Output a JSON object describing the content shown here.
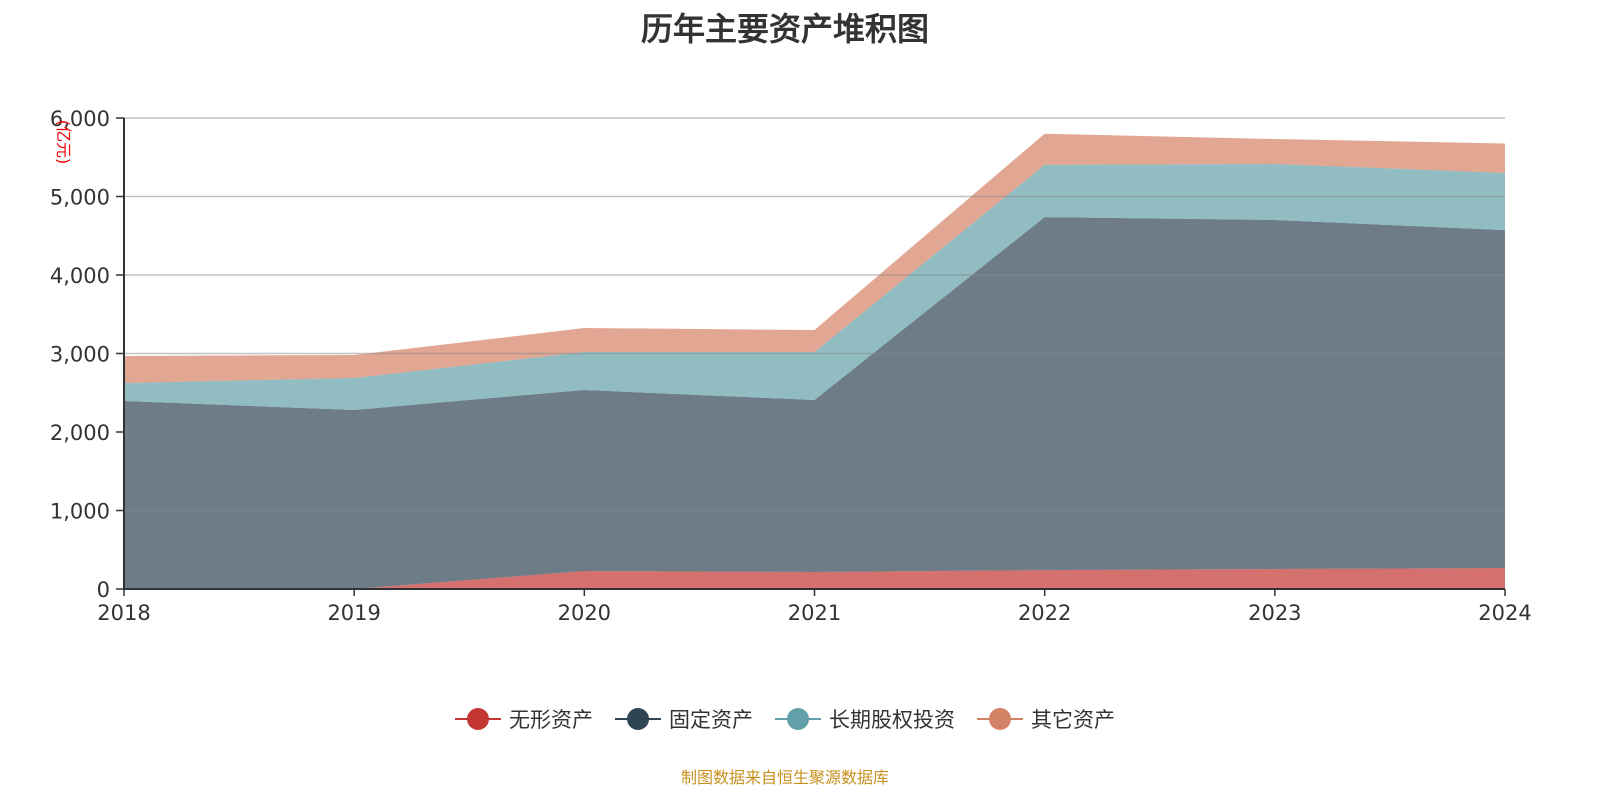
{
  "chart_data": {
    "type": "area",
    "stacked": true,
    "title": "历年主要资产堆积图",
    "ylabel": "(亿元)",
    "xlabel": "",
    "ylim": [
      0,
      6000
    ],
    "yticks": [
      "0",
      "1,000",
      "2,000",
      "3,000",
      "4,000",
      "5,000",
      "6,000"
    ],
    "categories": [
      "2018",
      "2019",
      "2020",
      "2021",
      "2022",
      "2023",
      "2024"
    ],
    "grid": true,
    "legend_position": "bottom",
    "series": [
      {
        "name": "无形资产",
        "color": "#c23531",
        "values": [
          0,
          0,
          229,
          217,
          240,
          255,
          267
        ]
      },
      {
        "name": "固定资产",
        "color": "#2f4554",
        "values": [
          2395,
          2280,
          2306,
          2191,
          4497,
          4446,
          4304
        ]
      },
      {
        "name": "长期股权投资",
        "color": "#61a0a8",
        "values": [
          229,
          408,
          484,
          611,
          667,
          713,
          729
        ]
      },
      {
        "name": "其它资产",
        "color": "#d48265",
        "values": [
          344,
          293,
          306,
          280,
          396,
          318,
          375
        ]
      }
    ]
  },
  "source_note": "制图数据来自恒生聚源数据库"
}
